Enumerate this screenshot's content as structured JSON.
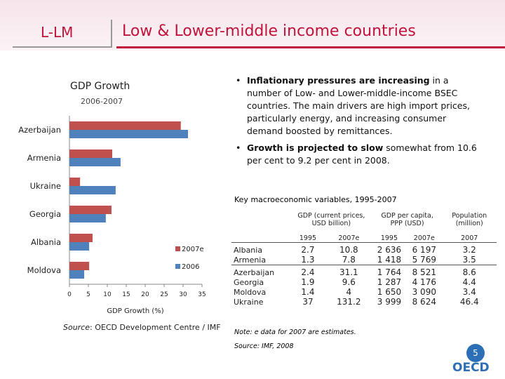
{
  "header": {
    "tag": "L-LM",
    "title": "Low & Lower-middle income countries"
  },
  "bullets": [
    {
      "bold": "Inflationary pressures are increasing",
      "text": " in a number of Low- and Lower-middle-income BSEC countries. The main drivers are high import prices, particularly energy, and increasing consumer demand boosted by remittances."
    },
    {
      "bold": "Growth is projected to slow",
      "text": " somewhat from 10.6 per cent to 9.2 per cent in 2008."
    }
  ],
  "chart_data": {
    "type": "hbar",
    "title": "GDP Growth",
    "subtitle": "2006-2007",
    "x_label": "GDP Growth (%)",
    "categories": [
      "Azerbaijan",
      "Armenia",
      "Ukraine",
      "Georgia",
      "Albania",
      "Moldova"
    ],
    "series": [
      {
        "name": "2007e",
        "color": "#c0504d",
        "values": [
          29.4,
          11.3,
          2.8,
          11.1,
          6.1,
          5.2
        ]
      },
      {
        "name": "2006",
        "color": "#4f81bd",
        "values": [
          31.3,
          13.5,
          12.2,
          9.6,
          5.2,
          3.9
        ]
      }
    ],
    "xlim": [
      0,
      35
    ],
    "xticks": [
      0,
      5,
      10,
      15,
      20,
      25,
      30,
      35
    ],
    "source_label": "Source",
    "source_text": ": OECD Development Centre / IMF"
  },
  "table": {
    "title": "Key macroeconomic variables, 1995-2007",
    "groups_header": [
      "GDP (current prices, USD billion)",
      "GDP per capita, PPP (USD)",
      "Population (million)"
    ],
    "columns": [
      "1995",
      "2007e",
      "1995",
      "2007e",
      "2007"
    ],
    "groups": [
      {
        "rows": [
          [
            "Albania",
            "2.7",
            "10.8",
            "2 636",
            "6 197",
            "3.2"
          ],
          [
            "Armenia",
            "1.3",
            "7.8",
            "1 418",
            "5 769",
            "3.5"
          ]
        ]
      },
      {
        "rows": [
          [
            "Azerbaijan",
            "2.4",
            "31.1",
            "1 764",
            "8 521",
            "8.6"
          ],
          [
            "Georgia",
            "1.9",
            "9.6",
            "1 287",
            "4 176",
            "4.4"
          ],
          [
            "Moldova",
            "1.4",
            "4",
            "1 650",
            "3 090",
            "3.4"
          ],
          [
            "Ukraine",
            "37",
            "131.2",
            "3 999",
            "8 624",
            "46.4"
          ]
        ]
      }
    ],
    "note": "Note: e data for 2007 are estimates.",
    "source": "Source: IMF, 2008"
  },
  "page_number": "5",
  "logo": "OECD"
}
